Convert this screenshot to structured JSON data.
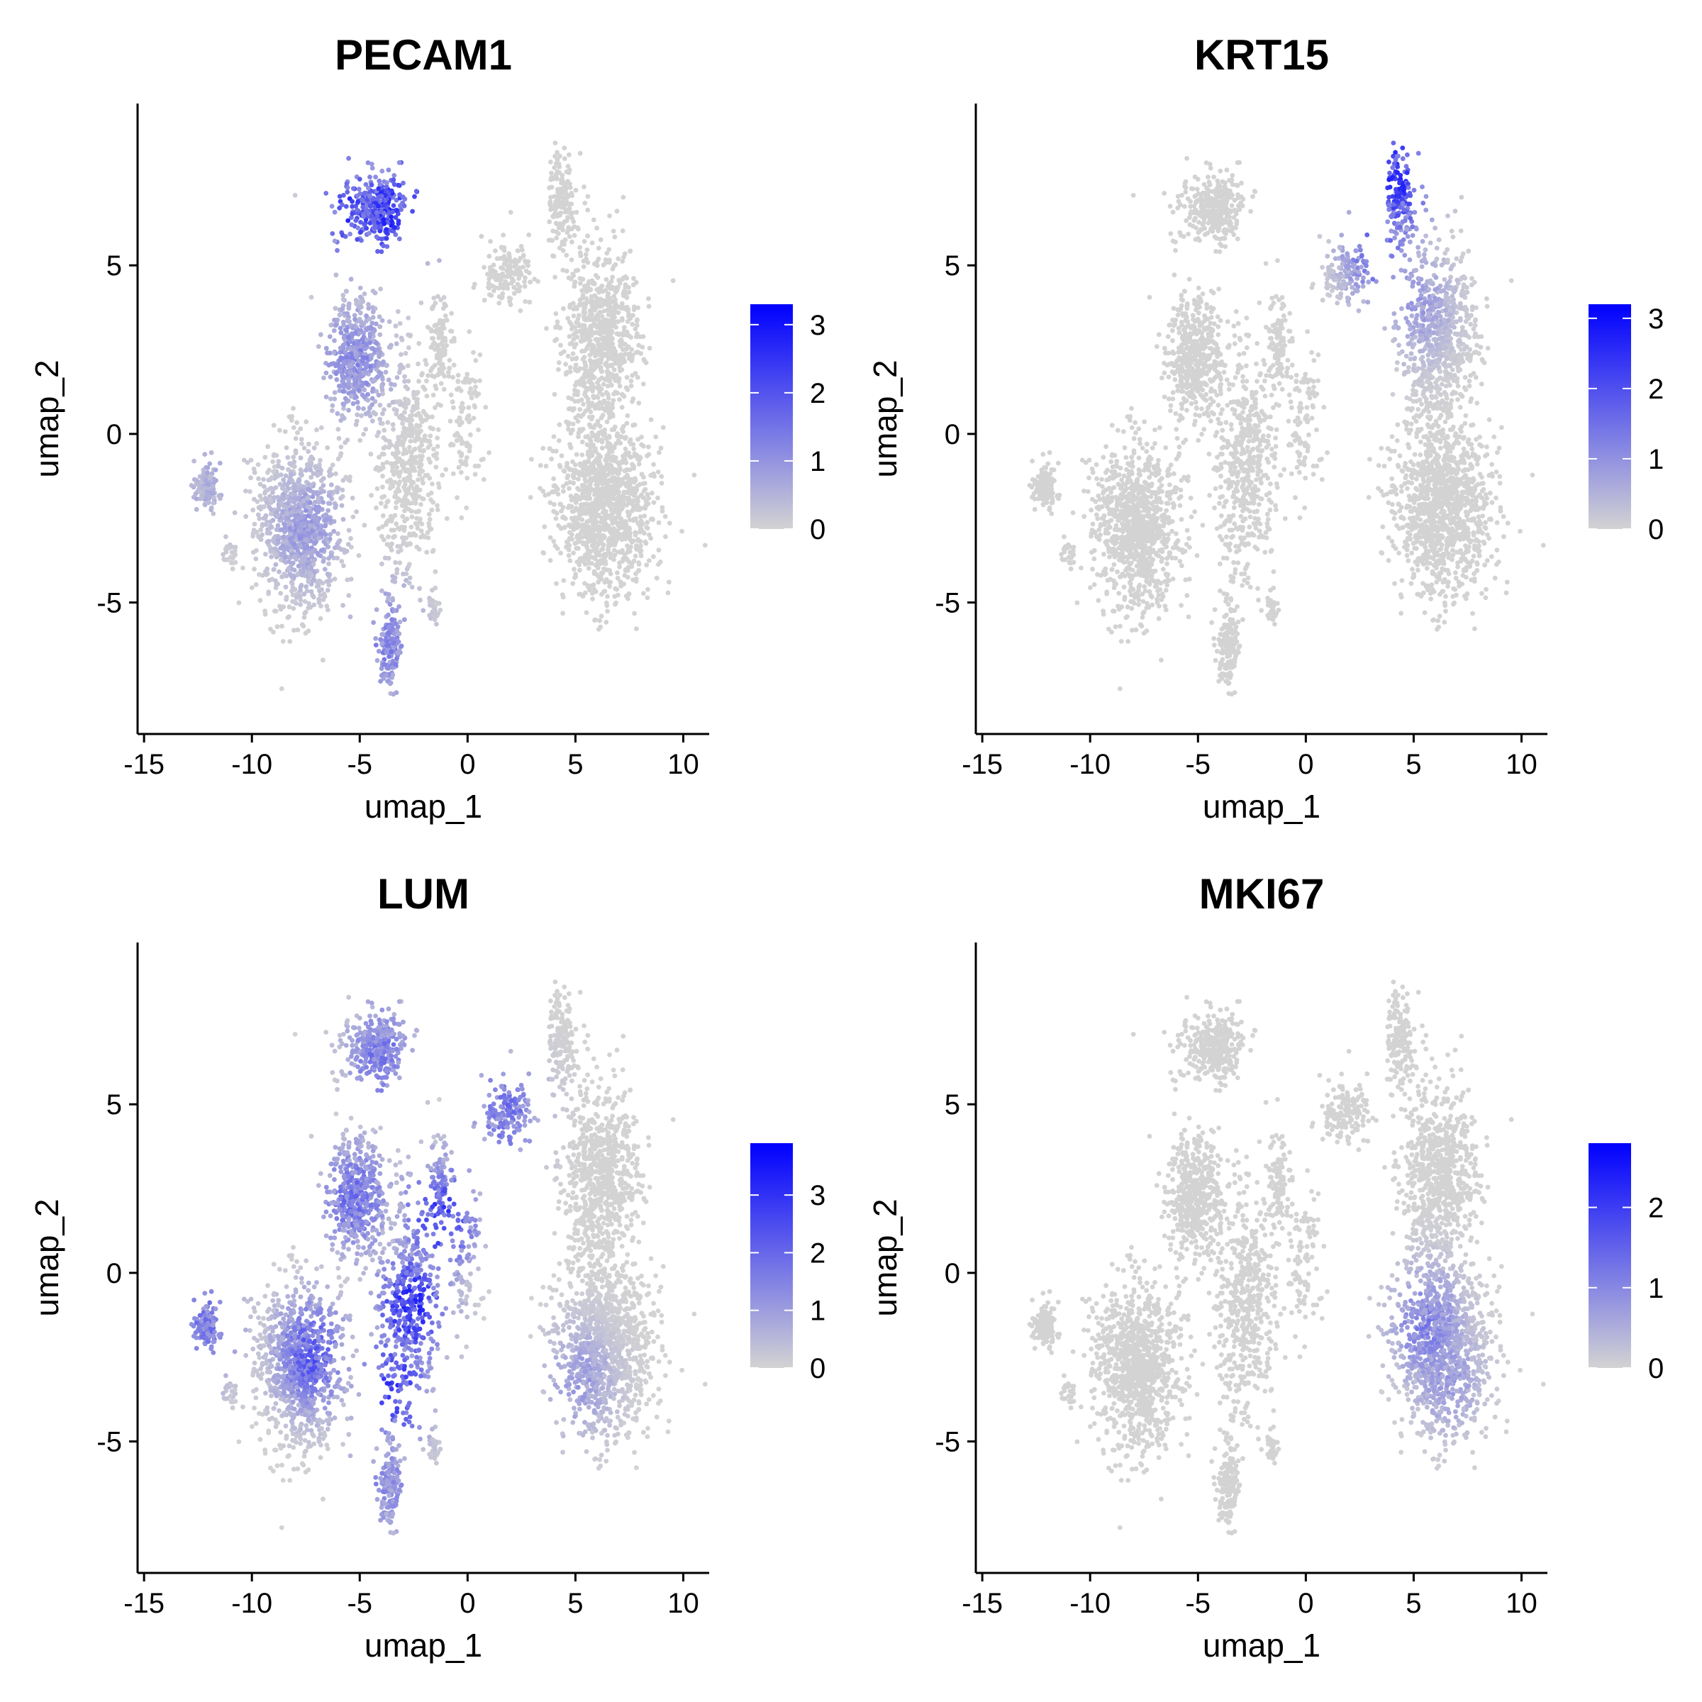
{
  "chart_data": [
    {
      "type": "scatter",
      "title": "PECAM1",
      "xlabel": "umap_1",
      "ylabel": "umap_2",
      "xlim": [
        -15.3,
        11.2
      ],
      "ylim": [
        -8.9,
        9.8
      ],
      "xticks": [
        -15,
        -10,
        -5,
        0,
        5,
        10
      ],
      "yticks": [
        -5,
        0,
        5
      ],
      "x_tick_labels": [
        "-15",
        "-10",
        "-5",
        "0",
        "5",
        "10"
      ],
      "y_tick_labels": [
        "-5",
        "0",
        "5"
      ],
      "grid": false,
      "legend": {
        "placement": "right",
        "type": "colorbar",
        "min": 0,
        "max": 3.3,
        "ticks": [
          0,
          1,
          2,
          3
        ],
        "tick_labels": [
          "0",
          "1",
          "2",
          "3"
        ],
        "low_color": "#d3d3d3",
        "high_color": "#0000ff"
      },
      "expression_hotspots": [
        {
          "x": -3.8,
          "y": 6.6,
          "level": 2.9
        },
        {
          "x": -5.3,
          "y": 6.6,
          "level": 2.7
        },
        {
          "x": -2.7,
          "y": 7.0,
          "level": 2.6
        },
        {
          "x": -5.2,
          "y": 2.2,
          "level": 1.4
        },
        {
          "x": -7.5,
          "y": -2.8,
          "level": 1.1
        },
        {
          "x": -3.8,
          "y": -6.2,
          "level": 1.5
        },
        {
          "x": -12.0,
          "y": -1.5,
          "level": 0.7
        }
      ]
    },
    {
      "type": "scatter",
      "title": "KRT15",
      "xlabel": "umap_1",
      "ylabel": "umap_2",
      "xlim": [
        -15.3,
        11.2
      ],
      "ylim": [
        -8.9,
        9.8
      ],
      "xticks": [
        -15,
        -10,
        -5,
        0,
        5,
        10
      ],
      "yticks": [
        -5,
        0,
        5
      ],
      "x_tick_labels": [
        "-15",
        "-10",
        "-5",
        "0",
        "5",
        "10"
      ],
      "y_tick_labels": [
        "-5",
        "0",
        "5"
      ],
      "grid": false,
      "legend": {
        "placement": "right",
        "type": "colorbar",
        "min": 0,
        "max": 3.2,
        "ticks": [
          0,
          1,
          2,
          3
        ],
        "tick_labels": [
          "0",
          "1",
          "2",
          "3"
        ],
        "low_color": "#d3d3d3",
        "high_color": "#0000ff"
      },
      "expression_hotspots": [
        {
          "x": 4.2,
          "y": 7.6,
          "level": 3.0
        },
        {
          "x": 3.4,
          "y": 5.6,
          "level": 2.0
        },
        {
          "x": 5.2,
          "y": 3.8,
          "level": 1.0
        }
      ]
    },
    {
      "type": "scatter",
      "title": "LUM",
      "xlabel": "umap_1",
      "ylabel": "umap_2",
      "xlim": [
        -15.3,
        11.2
      ],
      "ylim": [
        -8.9,
        9.8
      ],
      "xticks": [
        -15,
        -10,
        -5,
        0,
        5,
        10
      ],
      "yticks": [
        -5,
        0,
        5
      ],
      "x_tick_labels": [
        "-15",
        "-10",
        "-5",
        "0",
        "5",
        "10"
      ],
      "y_tick_labels": [
        "-5",
        "0",
        "5"
      ],
      "grid": false,
      "legend": {
        "placement": "right",
        "type": "colorbar",
        "min": 0,
        "max": 3.9,
        "ticks": [
          0,
          1,
          2,
          3
        ],
        "tick_labels": [
          "0",
          "1",
          "2",
          "3"
        ],
        "low_color": "#d3d3d3",
        "high_color": "#0000ff"
      },
      "expression_hotspots": [
        {
          "x": -2.6,
          "y": -1.0,
          "level": 3.6
        },
        {
          "x": -1.3,
          "y": 1.6,
          "level": 3.2
        },
        {
          "x": -3.4,
          "y": -3.4,
          "level": 3.1
        },
        {
          "x": -7.2,
          "y": -2.4,
          "level": 2.6
        },
        {
          "x": -5.2,
          "y": 2.2,
          "level": 2.2
        },
        {
          "x": 1.8,
          "y": 4.8,
          "level": 2.1
        },
        {
          "x": -4.0,
          "y": 6.4,
          "level": 2.0
        },
        {
          "x": -12.0,
          "y": -1.5,
          "level": 2.0
        },
        {
          "x": 5.2,
          "y": -3.2,
          "level": 1.2
        },
        {
          "x": -3.8,
          "y": -6.2,
          "level": 1.6
        }
      ]
    },
    {
      "type": "scatter",
      "title": "MKI67",
      "xlabel": "umap_1",
      "ylabel": "umap_2",
      "xlim": [
        -15.3,
        11.2
      ],
      "ylim": [
        -8.9,
        9.8
      ],
      "xticks": [
        -15,
        -10,
        -5,
        0,
        5,
        10
      ],
      "yticks": [
        -5,
        0,
        5
      ],
      "x_tick_labels": [
        "-15",
        "-10",
        "-5",
        "0",
        "5",
        "10"
      ],
      "y_tick_labels": [
        "-5",
        "0",
        "5"
      ],
      "grid": false,
      "legend": {
        "placement": "right",
        "type": "colorbar",
        "min": 0,
        "max": 2.8,
        "ticks": [
          0,
          1,
          2
        ],
        "tick_labels": [
          "0",
          "1",
          "2"
        ],
        "low_color": "#d3d3d3",
        "high_color": "#0000ff"
      },
      "expression_hotspots": [
        {
          "x": 5.6,
          "y": -1.6,
          "level": 1.3
        },
        {
          "x": 6.5,
          "y": -3.0,
          "level": 0.9
        }
      ]
    }
  ]
}
